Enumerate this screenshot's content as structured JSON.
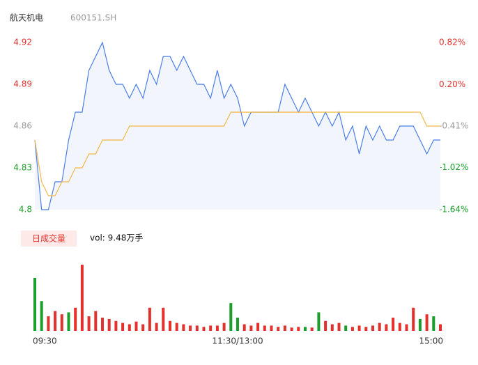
{
  "header": {
    "name": "航天机电",
    "code": "600151.SH"
  },
  "chart_data": {
    "type": "line",
    "xlim": [
      0,
      240
    ],
    "xticks": [
      {
        "value": 0,
        "label": "09:30"
      },
      {
        "value": 120,
        "label": "11:30/13:00"
      },
      {
        "value": 240,
        "label": "15:00"
      }
    ],
    "x": [
      0,
      4,
      8,
      12,
      16,
      20,
      24,
      28,
      32,
      36,
      40,
      44,
      48,
      52,
      56,
      60,
      64,
      68,
      72,
      76,
      80,
      84,
      88,
      92,
      96,
      100,
      104,
      108,
      112,
      116,
      120,
      124,
      128,
      132,
      136,
      140,
      144,
      148,
      152,
      156,
      160,
      164,
      168,
      172,
      176,
      180,
      184,
      188,
      192,
      196,
      200,
      204,
      208,
      212,
      216,
      220,
      224,
      228,
      232,
      236,
      240
    ],
    "ylim": [
      4.8,
      4.92
    ],
    "yticks": [
      4.92,
      4.89,
      4.86,
      4.83,
      4.8
    ],
    "y2lim": [
      -1.64,
      0.82
    ],
    "y2ticks": [
      {
        "value": 0.82,
        "label": "0.82%"
      },
      {
        "value": 0.2,
        "label": "0.20%"
      },
      {
        "value": -0.41,
        "label": "-0.41%"
      },
      {
        "value": -1.02,
        "label": "-1.02%"
      },
      {
        "value": -1.64,
        "label": "-1.64%"
      }
    ],
    "tick_colors": [
      "#e3312d",
      "#e3312d",
      "#999999",
      "#1c9e2c",
      "#1c9e2c"
    ],
    "area_color": "#f2f5fc",
    "series": [
      {
        "color": "#4a7ee6",
        "values": [
          4.85,
          4.8,
          4.8,
          4.82,
          4.82,
          4.85,
          4.87,
          4.87,
          4.9,
          4.91,
          4.92,
          4.9,
          4.89,
          4.89,
          4.88,
          4.89,
          4.88,
          4.9,
          4.89,
          4.91,
          4.91,
          4.9,
          4.91,
          4.9,
          4.89,
          4.89,
          4.88,
          4.9,
          4.88,
          4.89,
          4.88,
          4.86,
          4.87,
          4.87,
          4.87,
          4.87,
          4.87,
          4.89,
          4.88,
          4.87,
          4.88,
          4.87,
          4.86,
          4.87,
          4.86,
          4.87,
          4.85,
          4.86,
          4.84,
          4.86,
          4.85,
          4.86,
          4.85,
          4.85,
          4.86,
          4.86,
          4.86,
          4.85,
          4.84,
          4.85,
          4.85
        ]
      },
      {
        "color": "#f2b84b",
        "values": [
          4.85,
          4.82,
          4.81,
          4.81,
          4.82,
          4.82,
          4.83,
          4.83,
          4.84,
          4.84,
          4.85,
          4.85,
          4.85,
          4.85,
          4.86,
          4.86,
          4.86,
          4.86,
          4.86,
          4.86,
          4.86,
          4.86,
          4.86,
          4.86,
          4.86,
          4.86,
          4.86,
          4.86,
          4.86,
          4.87,
          4.87,
          4.87,
          4.87,
          4.87,
          4.87,
          4.87,
          4.87,
          4.87,
          4.87,
          4.87,
          4.87,
          4.87,
          4.87,
          4.87,
          4.87,
          4.87,
          4.87,
          4.87,
          4.87,
          4.87,
          4.87,
          4.87,
          4.87,
          4.87,
          4.87,
          4.87,
          4.87,
          4.87,
          4.86,
          4.86,
          4.86
        ]
      }
    ],
    "volume": {
      "label": "日成交量",
      "total_label": "vol: 9.48万手",
      "ylim": [
        0,
        100
      ],
      "values": [
        80,
        45,
        22,
        30,
        25,
        28,
        35,
        100,
        22,
        30,
        20,
        18,
        15,
        12,
        10,
        14,
        10,
        35,
        12,
        35,
        15,
        12,
        10,
        8,
        8,
        6,
        8,
        8,
        12,
        42,
        20,
        10,
        8,
        12,
        8,
        8,
        6,
        8,
        5,
        6,
        6,
        5,
        28,
        15,
        10,
        12,
        8,
        6,
        8,
        6,
        8,
        12,
        10,
        20,
        12,
        10,
        35,
        18,
        25,
        22,
        10
      ],
      "colors": [
        "#1c9e2c",
        "#1c9e2c",
        "#e3312d",
        "#e3312d",
        "#e3312d",
        "#1c9e2c",
        "#e3312d",
        "#e3312d",
        "#e3312d",
        "#e3312d",
        "#e3312d",
        "#e3312d",
        "#e3312d",
        "#e3312d",
        "#e3312d",
        "#e3312d",
        "#e3312d",
        "#e3312d",
        "#e3312d",
        "#e3312d",
        "#e3312d",
        "#e3312d",
        "#e3312d",
        "#e3312d",
        "#e3312d",
        "#e3312d",
        "#e3312d",
        "#e3312d",
        "#e3312d",
        "#1c9e2c",
        "#1c9e2c",
        "#e3312d",
        "#e3312d",
        "#e3312d",
        "#e3312d",
        "#e3312d",
        "#e3312d",
        "#e3312d",
        "#e3312d",
        "#e3312d",
        "#1c9e2c",
        "#e3312d",
        "#1c9e2c",
        "#e3312d",
        "#e3312d",
        "#e3312d",
        "#1c9e2c",
        "#e3312d",
        "#e3312d",
        "#e3312d",
        "#e3312d",
        "#e3312d",
        "#e3312d",
        "#e3312d",
        "#e3312d",
        "#e3312d",
        "#e3312d",
        "#1c9e2c",
        "#e3312d",
        "#1c9e2c",
        "#e3312d"
      ]
    }
  }
}
